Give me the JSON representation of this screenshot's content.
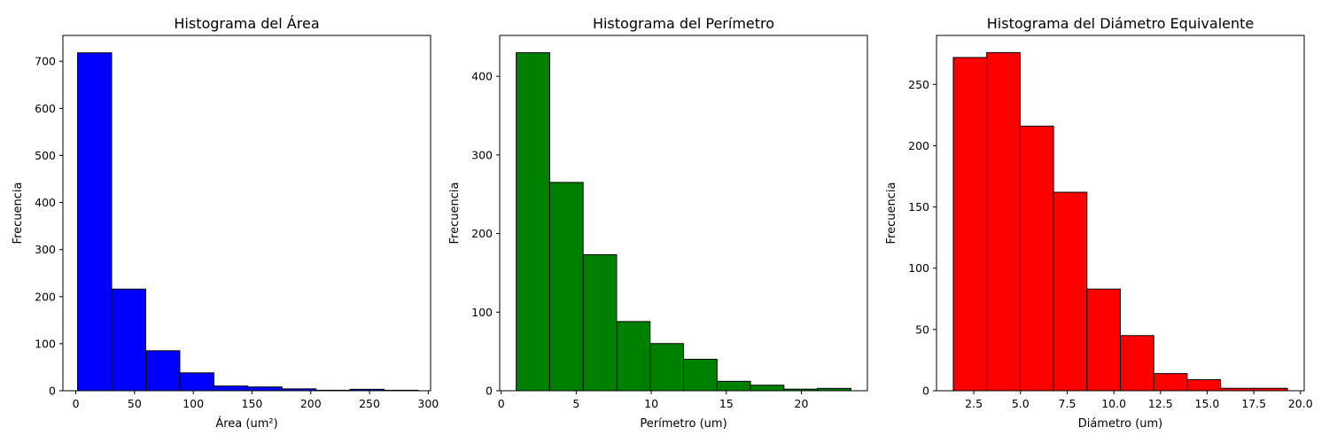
{
  "chart_data": [
    {
      "type": "bar",
      "title": "Histograma del Área",
      "xlabel": "Área (um²)",
      "ylabel": "Frecuencia",
      "color": "#0000ff",
      "edgecolor": "#000000",
      "bin_edges": [
        1.5,
        30.5,
        59.5,
        88.5,
        117.5,
        146.5,
        175.5,
        204.5,
        233.5,
        262.5,
        291.5
      ],
      "values": [
        718,
        216,
        85,
        38,
        10,
        8,
        4,
        1,
        3,
        1
      ],
      "xlim": [
        -11,
        302
      ],
      "ylim": [
        0,
        755
      ],
      "xticks": [
        0,
        50,
        100,
        150,
        200,
        250,
        300
      ],
      "xtick_labels": [
        "0",
        "50",
        "100",
        "150",
        "200",
        "250",
        "300"
      ],
      "yticks": [
        0,
        100,
        200,
        300,
        400,
        500,
        600,
        700
      ],
      "ytick_labels": [
        "0",
        "100",
        "200",
        "300",
        "400",
        "500",
        "600",
        "700"
      ]
    },
    {
      "type": "bar",
      "title": "Histograma del Perímetro",
      "xlabel": "Perímetro (um)",
      "ylabel": "Frecuencia",
      "color": "#008000",
      "edgecolor": "#000000",
      "bin_edges": [
        1.0,
        3.23,
        5.46,
        7.69,
        9.92,
        12.15,
        14.38,
        16.61,
        18.84,
        21.07,
        23.3
      ],
      "values": [
        430,
        265,
        173,
        88,
        60,
        40,
        12,
        7,
        2,
        3
      ],
      "xlim": [
        -0.1,
        24.4
      ],
      "ylim": [
        0,
        452
      ],
      "xticks": [
        0,
        5,
        10,
        15,
        20
      ],
      "xtick_labels": [
        "0",
        "5",
        "10",
        "15",
        "20"
      ],
      "yticks": [
        0,
        100,
        200,
        300,
        400
      ],
      "ytick_labels": [
        "0",
        "100",
        "200",
        "300",
        "400"
      ]
    },
    {
      "type": "bar",
      "title": "Histograma del Diámetro Equivalente",
      "xlabel": "Diámetro (um)",
      "ylabel": "Frecuencia",
      "color": "#ff0000",
      "edgecolor": "#000000",
      "bin_edges": [
        1.4,
        3.19,
        4.98,
        6.77,
        8.56,
        10.35,
        12.14,
        13.93,
        15.72,
        17.51,
        19.3
      ],
      "values": [
        272,
        276,
        216,
        162,
        83,
        45,
        14,
        9,
        2,
        2
      ],
      "xlim": [
        0.5,
        20.2
      ],
      "ylim": [
        0,
        290
      ],
      "xticks": [
        2.5,
        5.0,
        7.5,
        10.0,
        12.5,
        15.0,
        17.5,
        20.0
      ],
      "xtick_labels": [
        "2.5",
        "5.0",
        "7.5",
        "10.0",
        "12.5",
        "15.0",
        "17.5",
        "20.0"
      ],
      "yticks": [
        0,
        50,
        100,
        150,
        200,
        250
      ],
      "ytick_labels": [
        "0",
        "50",
        "100",
        "150",
        "200",
        "250"
      ]
    }
  ]
}
